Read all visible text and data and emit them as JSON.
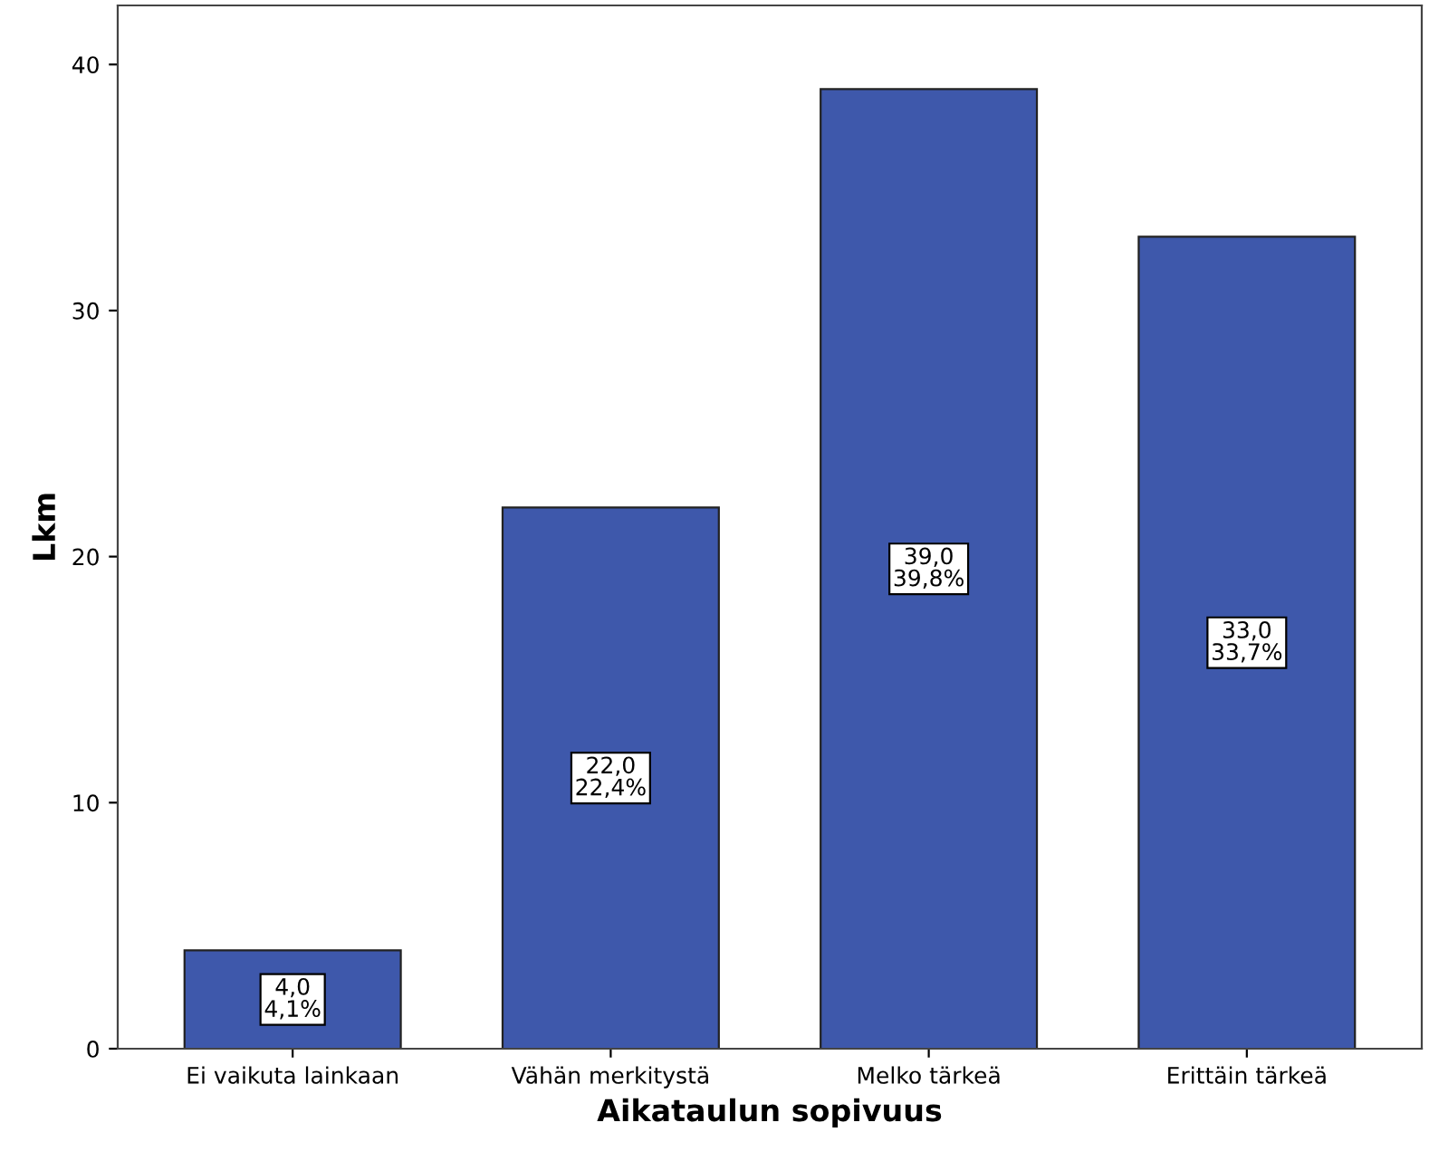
{
  "chart_data": {
    "type": "bar",
    "xlabel": "Aikataulun sopivuus",
    "ylabel": "Lkm",
    "categories": [
      "Ei vaikuta lainkaan",
      "Vähän merkitystä",
      "Melko tärkeä",
      "Erittäin tärkeä"
    ],
    "values": [
      4,
      22,
      39,
      33
    ],
    "value_labels": [
      "4,0\n4,1%",
      "22,0\n22,4%",
      "39,0\n39,8%",
      "33,0\n33,7%"
    ],
    "color": "#3e58ab",
    "ylim": [
      0,
      42.4
    ],
    "yticks": [
      0,
      10,
      20,
      30,
      40
    ],
    "grid": false,
    "legend": false
  }
}
